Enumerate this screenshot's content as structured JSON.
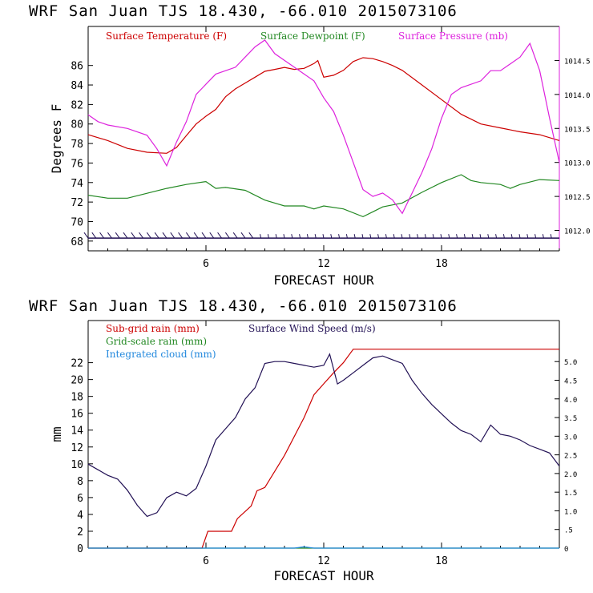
{
  "chart_data": [
    {
      "type": "line",
      "title": "WRF   San Juan TJS  18.430, -66.010  2015073106",
      "xlabel": "FORECAST HOUR",
      "ylabel": "Degrees F",
      "xlim": [
        0,
        24
      ],
      "ylim": [
        67,
        90
      ],
      "y2lim": [
        1011.7,
        1015.0
      ],
      "x_ticks": [
        6,
        12,
        18
      ],
      "y_ticks": [
        68,
        70,
        72,
        74,
        76,
        78,
        80,
        82,
        84,
        86
      ],
      "y2_ticks": [
        {
          "v": 1012.0,
          "label": "1012.0"
        },
        {
          "v": 1012.5,
          "label": "1012.5"
        },
        {
          "v": 1013.0,
          "label": "1013.0"
        },
        {
          "v": 1013.5,
          "label": "1013.5"
        },
        {
          "v": 1014.0,
          "label": "1014.0"
        },
        {
          "v": 1014.5,
          "label": "1014.5"
        }
      ],
      "legend": [
        "Surface Temperature (F)",
        "Surface Dewpoint (F)",
        "Surface Pressure (mb)"
      ],
      "series": [
        {
          "name": "Surface Temperature (F)",
          "axis": "left",
          "color": "#cc0000",
          "x": [
            0,
            1,
            2,
            3,
            4,
            4.5,
            5,
            5.5,
            6,
            6.5,
            7,
            7.5,
            8,
            8.5,
            9,
            9.5,
            10,
            10.5,
            11,
            11.5,
            11.7,
            12,
            12.5,
            13,
            13.5,
            14,
            14.5,
            15,
            15.5,
            16,
            17,
            18,
            19,
            20,
            21,
            22,
            23,
            24
          ],
          "values": [
            78.9,
            78.3,
            77.5,
            77.1,
            77.0,
            77.6,
            78.8,
            80.0,
            80.8,
            81.5,
            82.8,
            83.6,
            84.2,
            84.8,
            85.4,
            85.6,
            85.8,
            85.6,
            85.7,
            86.2,
            86.5,
            84.8,
            85.0,
            85.5,
            86.4,
            86.8,
            86.7,
            86.4,
            86.0,
            85.5,
            84.0,
            82.5,
            81.0,
            80.0,
            79.6,
            79.2,
            78.9,
            78.3
          ]
        },
        {
          "name": "Surface Dewpoint (F)",
          "axis": "left",
          "color": "#228822",
          "x": [
            0,
            1,
            2,
            3,
            4,
            5,
            6,
            6.5,
            7,
            8,
            9,
            10,
            11,
            11.5,
            12,
            13,
            14,
            14.5,
            15,
            16,
            17,
            18,
            19,
            19.5,
            20,
            21,
            21.5,
            22,
            23,
            24
          ],
          "values": [
            72.7,
            72.4,
            72.4,
            72.9,
            73.4,
            73.8,
            74.1,
            73.4,
            73.5,
            73.2,
            72.2,
            71.6,
            71.6,
            71.3,
            71.6,
            71.3,
            70.5,
            71.0,
            71.5,
            71.9,
            73.0,
            74.0,
            74.8,
            74.2,
            74.0,
            73.8,
            73.4,
            73.8,
            74.3,
            74.2
          ]
        },
        {
          "name": "Surface Pressure (mb)",
          "axis": "right",
          "color": "#dd22dd",
          "x": [
            0,
            0.5,
            1,
            2,
            3,
            3.5,
            4,
            4.5,
            5,
            5.5,
            6,
            6.5,
            7,
            7.5,
            8,
            8.5,
            9,
            9.5,
            10,
            10.5,
            11,
            11.5,
            12,
            12.5,
            13,
            13.5,
            14,
            14.5,
            15,
            15.5,
            16,
            16.5,
            17,
            17.5,
            18,
            18.5,
            19,
            20,
            20.5,
            21,
            21.5,
            22,
            22.5,
            23,
            23.5,
            24
          ],
          "values": [
            1013.7,
            1013.6,
            1013.55,
            1013.5,
            1013.4,
            1013.2,
            1012.95,
            1013.3,
            1013.6,
            1014.0,
            1014.15,
            1014.3,
            1014.35,
            1014.4,
            1014.55,
            1014.7,
            1014.8,
            1014.6,
            1014.5,
            1014.4,
            1014.3,
            1014.2,
            1013.95,
            1013.75,
            1013.4,
            1013.0,
            1012.6,
            1012.5,
            1012.55,
            1012.45,
            1012.25,
            1012.55,
            1012.85,
            1013.2,
            1013.65,
            1014.0,
            1014.1,
            1014.2,
            1014.35,
            1014.35,
            1014.45,
            1014.55,
            1014.75,
            1014.35,
            1013.65,
            1013.0
          ]
        }
      ],
      "wind_barbs": {
        "y_level": 68.3,
        "count": 60
      }
    },
    {
      "type": "line",
      "title": "WRF   San Juan TJS  18.430, -66.010  2015073106",
      "xlabel": "FORECAST HOUR",
      "ylabel": "mm",
      "xlim": [
        0,
        24
      ],
      "ylim": [
        0,
        27
      ],
      "y2lim": [
        0,
        6.1
      ],
      "x_ticks": [
        6,
        12,
        18
      ],
      "y_ticks": [
        0,
        2,
        4,
        6,
        8,
        10,
        12,
        14,
        16,
        18,
        20,
        22
      ],
      "y2_ticks": [
        {
          "v": 0,
          "label": "0"
        },
        {
          "v": 0.5,
          "label": ".5"
        },
        {
          "v": 1.0,
          "label": "1.0"
        },
        {
          "v": 1.5,
          "label": "1.5"
        },
        {
          "v": 2.0,
          "label": "2.0"
        },
        {
          "v": 2.5,
          "label": "2.5"
        },
        {
          "v": 3.0,
          "label": "3.0"
        },
        {
          "v": 3.5,
          "label": "3.5"
        },
        {
          "v": 4.0,
          "label": "4.0"
        },
        {
          "v": 4.5,
          "label": "4.5"
        },
        {
          "v": 5.0,
          "label": "5.0"
        }
      ],
      "legend": [
        "Sub-grid rain (mm)",
        "Grid-scale rain (mm)",
        "Integrated cloud (mm)",
        "Surface Wind Speed (m/s)"
      ],
      "series": [
        {
          "name": "Sub-grid rain (mm)",
          "axis": "left",
          "color": "#cc0000",
          "x": [
            0,
            5.8,
            6.1,
            7.3,
            7.6,
            8.3,
            8.6,
            9.0,
            10,
            11,
            11.5,
            12,
            12.5,
            13,
            13.5,
            14,
            24
          ],
          "values": [
            0,
            0,
            2.0,
            2.0,
            3.5,
            5.0,
            6.8,
            7.2,
            11.0,
            15.5,
            18.2,
            19.5,
            20.8,
            22.0,
            23.6,
            23.6,
            23.6
          ]
        },
        {
          "name": "Grid-scale rain (mm)",
          "axis": "left",
          "color": "#228822",
          "x": [
            0,
            24
          ],
          "values": [
            0,
            0
          ]
        },
        {
          "name": "Integrated cloud (mm)",
          "axis": "left",
          "color": "#2288dd",
          "x": [
            0,
            10.5,
            11,
            11.5,
            24
          ],
          "values": [
            0,
            0,
            0.15,
            0,
            0
          ]
        },
        {
          "name": "Surface Wind Speed (m/s)",
          "axis": "right",
          "color": "#221155",
          "x": [
            0,
            0.5,
            1,
            1.5,
            2,
            2.5,
            3,
            3.5,
            4,
            4.5,
            5,
            5.5,
            6,
            6.5,
            7,
            7.5,
            8,
            8.5,
            9,
            9.5,
            10,
            10.5,
            11,
            11.5,
            12,
            12.3,
            12.7,
            13,
            13.5,
            14,
            14.5,
            15,
            15.5,
            16,
            16.5,
            17,
            17.5,
            18,
            18.5,
            19,
            19.5,
            20,
            20.5,
            21,
            21.5,
            22,
            22.5,
            23,
            23.5,
            24
          ],
          "values": [
            2.25,
            2.1,
            1.95,
            1.85,
            1.55,
            1.15,
            0.85,
            0.95,
            1.35,
            1.5,
            1.4,
            1.6,
            2.2,
            2.9,
            3.2,
            3.5,
            4.0,
            4.3,
            4.95,
            5.0,
            5.0,
            4.95,
            4.9,
            4.85,
            4.9,
            5.2,
            4.4,
            4.5,
            4.7,
            4.9,
            5.1,
            5.15,
            5.05,
            4.95,
            4.5,
            4.15,
            3.85,
            3.6,
            3.35,
            3.15,
            3.05,
            2.85,
            3.3,
            3.05,
            3.0,
            2.9,
            2.75,
            2.65,
            2.55,
            2.2
          ]
        }
      ]
    }
  ]
}
